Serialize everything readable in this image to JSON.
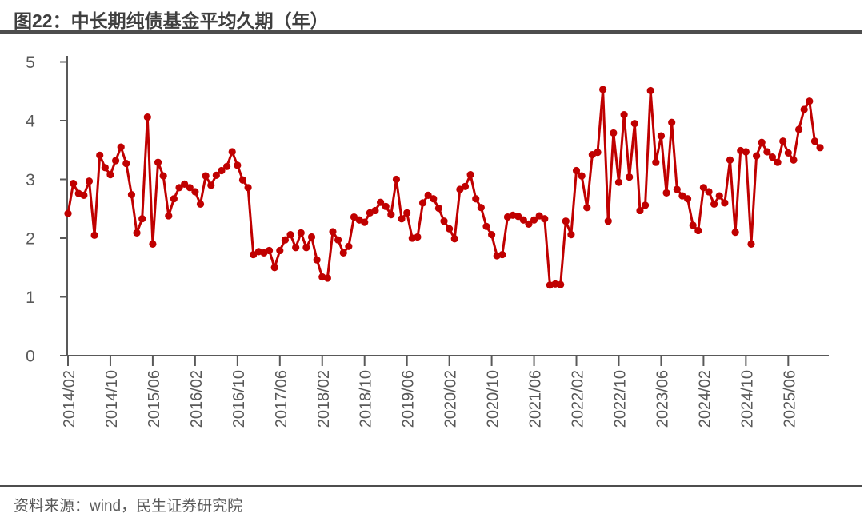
{
  "figure": {
    "title": "图22：中长期纯债基金平均久期（年）",
    "source": "资料来源：wind，民生证券研究院"
  },
  "colors": {
    "line": "#C00000",
    "axis": "#595959",
    "tick_label": "#595959",
    "title_text": "#3F3F3F",
    "rule": "#4D4D4D",
    "background": "#FFFFFF"
  },
  "chart_data": {
    "type": "line",
    "title": "中长期纯债基金平均久期（年）",
    "series_name": "中长期纯债基金平均久期",
    "x_start": "2014/02",
    "x_frequency": "monthly",
    "x_tick_labels": [
      "2014/02",
      "2014/10",
      "2015/06",
      "2016/02",
      "2016/10",
      "2017/06",
      "2018/02",
      "2018/10",
      "2019/06",
      "2020/02",
      "2020/10",
      "2021/06",
      "2022/02",
      "2022/10",
      "2023/06",
      "2024/02",
      "2024/10",
      "2025/06"
    ],
    "x_ticks_every_n_months": 8,
    "ylim": [
      0,
      5
    ],
    "y_ticks": [
      0,
      1,
      2,
      3,
      4,
      5
    ],
    "grid": false,
    "legend": "none",
    "marker": "circle",
    "line_color": "#C00000",
    "values": [
      2.42,
      2.93,
      2.76,
      2.73,
      2.97,
      2.05,
      3.41,
      3.2,
      3.08,
      3.32,
      3.55,
      3.27,
      2.74,
      2.09,
      2.33,
      4.06,
      1.9,
      3.29,
      3.06,
      2.38,
      2.67,
      2.86,
      2.92,
      2.86,
      2.79,
      2.58,
      3.06,
      2.9,
      3.07,
      3.15,
      3.22,
      3.47,
      3.24,
      2.99,
      2.86,
      1.72,
      1.77,
      1.75,
      1.79,
      1.5,
      1.79,
      1.97,
      2.06,
      1.84,
      2.09,
      1.84,
      2.02,
      1.63,
      1.34,
      1.32,
      2.11,
      1.97,
      1.75,
      1.86,
      2.36,
      2.31,
      2.27,
      2.43,
      2.47,
      2.61,
      2.54,
      2.4,
      3.0,
      2.33,
      2.43,
      2.0,
      2.02,
      2.6,
      2.73,
      2.67,
      2.51,
      2.29,
      2.16,
      1.99,
      2.83,
      2.88,
      3.08,
      2.67,
      2.52,
      2.2,
      2.06,
      1.7,
      1.72,
      2.36,
      2.39,
      2.37,
      2.31,
      2.24,
      2.31,
      2.38,
      2.33,
      1.2,
      1.22,
      1.21,
      2.29,
      2.06,
      3.15,
      3.06,
      2.52,
      3.42,
      3.46,
      4.53,
      2.29,
      3.79,
      2.95,
      4.1,
      3.04,
      3.95,
      2.47,
      2.56,
      4.51,
      3.29,
      3.74,
      2.77,
      3.97,
      2.83,
      2.72,
      2.67,
      2.22,
      2.13,
      2.86,
      2.79,
      2.58,
      2.72,
      2.6,
      3.33,
      2.1,
      3.49,
      3.47,
      1.9,
      3.4,
      3.63,
      3.47,
      3.38,
      3.29,
      3.65,
      3.45,
      3.33,
      3.85,
      4.19,
      4.33,
      3.65,
      3.54
    ]
  }
}
